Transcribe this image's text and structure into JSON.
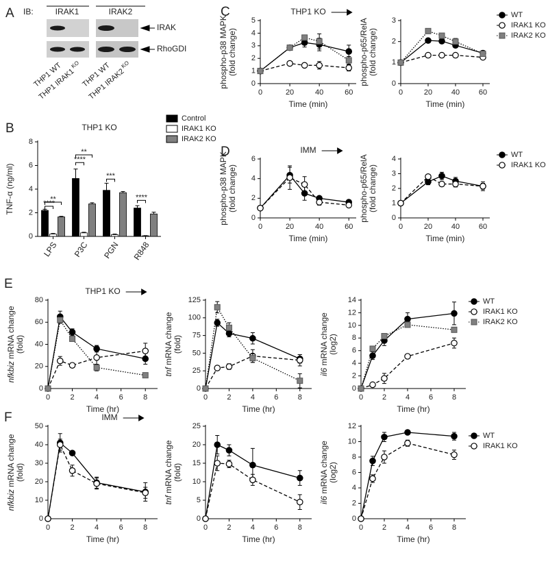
{
  "blot": {
    "panel": "A",
    "ib_label": "IB:",
    "antibodies": [
      "IRAK1",
      "IRAK2"
    ],
    "bands": [
      "IRAK",
      "RhoGDI"
    ],
    "lanes": [
      {
        "text": "THP1 WT"
      },
      {
        "text": "THP1 IRAK1",
        "superscript": "KO"
      },
      {
        "text": "THP1 WT"
      },
      {
        "text": "THP1 IRAK2",
        "superscript": "KO"
      }
    ]
  },
  "chart_data": [
    {
      "type": "bar",
      "panel": "B",
      "title": "THP1 KO",
      "ylabel": "TNF-α (ng/ml)",
      "categories": [
        "LPS",
        "P3C",
        "PGN",
        "R848"
      ],
      "ylim": [
        0,
        8
      ],
      "yticks": [
        0,
        2,
        4,
        6,
        8
      ],
      "legend": "top-right",
      "series": [
        {
          "name": "Control",
          "color": "#000000",
          "values": [
            2.2,
            4.9,
            3.9,
            2.4
          ],
          "errors": [
            0.1,
            0.8,
            0.6,
            0.2
          ]
        },
        {
          "name": "IRAK1 KO",
          "color": "#ffffff",
          "values": [
            0.2,
            0.3,
            0.15,
            0.05
          ],
          "errors": [
            0.05,
            0.05,
            0.05,
            0.02
          ]
        },
        {
          "name": "IRAK2 KO",
          "color": "#808080",
          "values": [
            1.65,
            2.75,
            3.7,
            1.9
          ],
          "errors": [
            0.05,
            0.1,
            0.1,
            0.15
          ]
        }
      ],
      "annotations": [
        "**",
        "****",
        "****",
        "**",
        "***",
        "****"
      ]
    },
    {
      "type": "line",
      "panel": "C",
      "title": "THP1 KO",
      "ylabel": [
        "phospho-p38 MAPK",
        "(fold change)"
      ],
      "xlabel": "Time (min)",
      "x": [
        0,
        20,
        30,
        40,
        60
      ],
      "xlim": [
        0,
        65
      ],
      "xticks": [
        0,
        20,
        40,
        60
      ],
      "ylim": [
        0,
        5
      ],
      "yticks": [
        0,
        1,
        2,
        3,
        4,
        5
      ],
      "series": [
        {
          "name": "WT",
          "color": "#000000",
          "marker": "circle",
          "dash": "solid",
          "values": [
            1,
            2.85,
            3.25,
            3.1,
            2.55
          ],
          "errors": [
            0,
            0.2,
            0.35,
            0.5,
            0.5
          ]
        },
        {
          "name": "IRAK1 KO",
          "color": "#ffffff",
          "marker": "circle",
          "dash": "dashed",
          "values": [
            1,
            1.6,
            1.45,
            1.45,
            1.25
          ],
          "errors": [
            0,
            0.1,
            0.1,
            0.3,
            0.25
          ]
        },
        {
          "name": "IRAK2 KO",
          "color": "#808080",
          "marker": "square",
          "dash": "dotted",
          "values": [
            1,
            2.85,
            3.65,
            3.35,
            1.85
          ],
          "errors": [
            0,
            0.15,
            0.15,
            0.6,
            0.3
          ]
        }
      ]
    },
    {
      "type": "line",
      "ylabel": [
        "phospho-p65/RelA",
        "(fold change)"
      ],
      "xlabel": "Time (min)",
      "legend": "top-right",
      "x": [
        0,
        20,
        30,
        40,
        60
      ],
      "xlim": [
        0,
        65
      ],
      "xticks": [
        0,
        20,
        40,
        60
      ],
      "ylim": [
        0,
        3
      ],
      "yticks": [
        0,
        1,
        2,
        3
      ],
      "series": [
        {
          "name": "WT",
          "color": "#000000",
          "marker": "circle",
          "dash": "solid",
          "values": [
            1,
            2.05,
            2.02,
            1.82,
            1.45
          ],
          "errors": [
            0,
            0.05,
            0.05,
            0.1,
            0.12
          ]
        },
        {
          "name": "IRAK1 KO",
          "color": "#ffffff",
          "marker": "circle",
          "dash": "dashed",
          "values": [
            1,
            1.35,
            1.35,
            1.35,
            1.25
          ],
          "errors": [
            0,
            0.1,
            0.1,
            0.05,
            0.1
          ]
        },
        {
          "name": "IRAK2 KO",
          "color": "#808080",
          "marker": "square",
          "dash": "dotted",
          "values": [
            1,
            2.5,
            2.28,
            2.0,
            1.42
          ],
          "errors": [
            0,
            0.12,
            0.08,
            0.15,
            0.05
          ]
        }
      ]
    },
    {
      "type": "line",
      "panel": "D",
      "title": "IMM",
      "ylabel": [
        "phospho-p38 MAPK",
        "(fold change)"
      ],
      "xlabel": "Time (min)",
      "x": [
        0,
        20,
        30,
        40,
        60
      ],
      "xlim": [
        0,
        65
      ],
      "xticks": [
        0,
        20,
        40,
        60
      ],
      "ylim": [
        0,
        6
      ],
      "yticks": [
        0,
        2,
        4,
        6
      ],
      "series": [
        {
          "name": "WT",
          "color": "#000000",
          "marker": "circle",
          "dash": "solid",
          "values": [
            1,
            4.35,
            2.5,
            2.0,
            1.6
          ],
          "errors": [
            0,
            0.8,
            0.7,
            0.2,
            0.15
          ]
        },
        {
          "name": "IRAK1 KO",
          "color": "#ffffff",
          "marker": "circle",
          "dash": "dashed",
          "values": [
            1,
            4.1,
            3.4,
            1.6,
            1.3
          ],
          "errors": [
            0,
            1.2,
            0.8,
            0.3,
            0.1
          ]
        }
      ]
    },
    {
      "type": "line",
      "ylabel": [
        "phospho-p65/RelA",
        "(fold change)"
      ],
      "xlabel": "Time (min)",
      "legend": "top-right",
      "x": [
        0,
        20,
        30,
        40,
        60
      ],
      "xlim": [
        0,
        65
      ],
      "xticks": [
        0,
        20,
        40,
        60
      ],
      "ylim": [
        0,
        4
      ],
      "yticks": [
        0,
        1,
        2,
        3,
        4
      ],
      "series": [
        {
          "name": "WT",
          "color": "#000000",
          "marker": "circle",
          "dash": "solid",
          "values": [
            1,
            2.45,
            2.85,
            2.5,
            2.15
          ],
          "errors": [
            0,
            0.2,
            0.25,
            0.25,
            0.3
          ]
        },
        {
          "name": "IRAK1 KO",
          "color": "#ffffff",
          "marker": "circle",
          "dash": "dashed",
          "values": [
            1,
            2.8,
            2.3,
            2.3,
            2.15
          ],
          "errors": [
            0,
            0.15,
            0.1,
            0.2,
            0.2
          ]
        }
      ]
    },
    {
      "type": "line",
      "panel": "E",
      "title": "THP1 KO",
      "ylabel": [
        "nfkbiz mRNA change",
        "(fold)"
      ],
      "xlabel": "Time (hr)",
      "x": [
        0,
        1,
        2,
        4,
        8
      ],
      "xlim": [
        0,
        9
      ],
      "xticks": [
        0,
        2,
        4,
        6,
        8
      ],
      "ylim": [
        0,
        80
      ],
      "yticks": [
        0,
        20,
        40,
        60,
        80
      ],
      "series": [
        {
          "name": "WT",
          "color": "#000000",
          "marker": "circle",
          "dash": "solid",
          "values": [
            0,
            65,
            51,
            36,
            27
          ],
          "errors": [
            0,
            5,
            3,
            3,
            5
          ]
        },
        {
          "name": "IRAK1 KO",
          "color": "#ffffff",
          "marker": "circle",
          "dash": "dashed",
          "values": [
            0,
            25,
            21,
            28,
            34
          ],
          "errors": [
            0,
            4,
            2,
            8,
            7
          ]
        },
        {
          "name": "IRAK2 KO",
          "color": "#808080",
          "marker": "square",
          "dash": "dotted",
          "values": [
            0,
            62,
            45,
            19,
            12
          ],
          "errors": [
            0,
            3,
            2,
            3,
            1
          ]
        }
      ]
    },
    {
      "type": "line",
      "ylabel": [
        "tnf mRNA change",
        "(fold)"
      ],
      "xlabel": "Time (hr)",
      "x": [
        0,
        1,
        2,
        4,
        8
      ],
      "xlim": [
        0,
        9
      ],
      "xticks": [
        0,
        2,
        4,
        6,
        8
      ],
      "ylim": [
        0,
        125
      ],
      "yticks": [
        0,
        25,
        50,
        75,
        100,
        125
      ],
      "series": [
        {
          "name": "WT",
          "color": "#000000",
          "marker": "circle",
          "dash": "solid",
          "values": [
            0,
            93,
            78,
            71,
            42
          ],
          "errors": [
            0,
            5,
            5,
            8,
            6
          ]
        },
        {
          "name": "IRAK1 KO",
          "color": "#ffffff",
          "marker": "circle",
          "dash": "dashed",
          "values": [
            0,
            29,
            31,
            46,
            40
          ],
          "errors": [
            0,
            3,
            4,
            9,
            8
          ]
        },
        {
          "name": "IRAK2 KO",
          "color": "#808080",
          "marker": "square",
          "dash": "dotted",
          "values": [
            0,
            115,
            86,
            43,
            11
          ],
          "errors": [
            0,
            8,
            7,
            6,
            10
          ]
        }
      ]
    },
    {
      "type": "line",
      "ylabel": [
        "il6 mRNA change",
        "(log2)"
      ],
      "xlabel": "Time (hr)",
      "legend": "top-right",
      "x": [
        0,
        1,
        2,
        4,
        8
      ],
      "xlim": [
        0,
        9
      ],
      "xticks": [
        0,
        2,
        4,
        6,
        8
      ],
      "ylim": [
        0,
        14
      ],
      "yticks": [
        0,
        2,
        4,
        6,
        8,
        10,
        12,
        14
      ],
      "series": [
        {
          "name": "WT",
          "color": "#000000",
          "marker": "circle",
          "dash": "solid",
          "values": [
            0,
            5.2,
            7.6,
            11,
            11.9
          ],
          "errors": [
            0,
            0.6,
            0.8,
            1,
            1.8
          ]
        },
        {
          "name": "IRAK1 KO",
          "color": "#ffffff",
          "marker": "circle",
          "dash": "dashed",
          "values": [
            0,
            0.6,
            1.6,
            5.1,
            7.2
          ],
          "errors": [
            0,
            0.3,
            0.8,
            0.2,
            0.8
          ]
        },
        {
          "name": "IRAK2 KO",
          "color": "#808080",
          "marker": "square",
          "dash": "dotted",
          "values": [
            0,
            6.3,
            8.3,
            10.1,
            9.3
          ],
          "errors": [
            0,
            0.4,
            0.3,
            0.3,
            0.4
          ]
        }
      ]
    },
    {
      "type": "line",
      "panel": "F",
      "title": "IMM",
      "ylabel": [
        "nfkbiz mRNA change",
        "(fold)"
      ],
      "xlabel": "Time (hr)",
      "x": [
        0,
        1,
        2,
        4,
        8
      ],
      "xlim": [
        0,
        9
      ],
      "xticks": [
        0,
        2,
        4,
        6,
        8
      ],
      "ylim": [
        0,
        50
      ],
      "yticks": [
        0,
        10,
        20,
        30,
        40,
        50
      ],
      "series": [
        {
          "name": "WT",
          "color": "#000000",
          "marker": "circle",
          "dash": "solid",
          "values": [
            0,
            41,
            35.5,
            19.5,
            14.5
          ],
          "errors": [
            0,
            5,
            1,
            3,
            5
          ]
        },
        {
          "name": "IRAK1 KO",
          "color": "#ffffff",
          "marker": "circle",
          "dash": "dashed",
          "values": [
            0,
            40,
            26,
            19,
            14
          ],
          "errors": [
            0,
            3,
            3,
            3,
            3
          ]
        }
      ]
    },
    {
      "type": "line",
      "ylabel": [
        "tnf mRNA change",
        "(fold)"
      ],
      "xlabel": "Time (hr)",
      "x": [
        0,
        1,
        2,
        4,
        8
      ],
      "xlim": [
        0,
        9
      ],
      "xticks": [
        0,
        2,
        4,
        6,
        8
      ],
      "ylim": [
        0,
        25
      ],
      "yticks": [
        0,
        5,
        10,
        15,
        20,
        25
      ],
      "series": [
        {
          "name": "WT",
          "color": "#000000",
          "marker": "circle",
          "dash": "solid",
          "values": [
            0,
            20,
            18.5,
            14.5,
            11
          ],
          "errors": [
            0,
            2.5,
            1.5,
            4.5,
            2
          ]
        },
        {
          "name": "IRAK1 KO",
          "color": "#ffffff",
          "marker": "circle",
          "dash": "dashed",
          "values": [
            0,
            15,
            14.8,
            10.5,
            4.5
          ],
          "errors": [
            0,
            2,
            1,
            1.5,
            2
          ]
        }
      ]
    },
    {
      "type": "line",
      "ylabel": [
        "il6 mRNA change",
        "(log2)"
      ],
      "xlabel": "Time (hr)",
      "legend": "top-right",
      "x": [
        0,
        1,
        2,
        4,
        8
      ],
      "xlim": [
        0,
        9
      ],
      "xticks": [
        0,
        2,
        4,
        6,
        8
      ],
      "ylim": [
        0,
        12
      ],
      "yticks": [
        0,
        2,
        4,
        6,
        8,
        10,
        12
      ],
      "series": [
        {
          "name": "WT",
          "color": "#000000",
          "marker": "circle",
          "dash": "solid",
          "values": [
            0,
            7.5,
            10.6,
            11.2,
            10.7
          ],
          "errors": [
            0,
            0.6,
            0.6,
            0.2,
            0.5
          ]
        },
        {
          "name": "IRAK1 KO",
          "color": "#ffffff",
          "marker": "circle",
          "dash": "dashed",
          "values": [
            0,
            5.2,
            8,
            9.8,
            8.3
          ],
          "errors": [
            0,
            0.5,
            0.8,
            0.4,
            0.6
          ]
        }
      ]
    }
  ]
}
